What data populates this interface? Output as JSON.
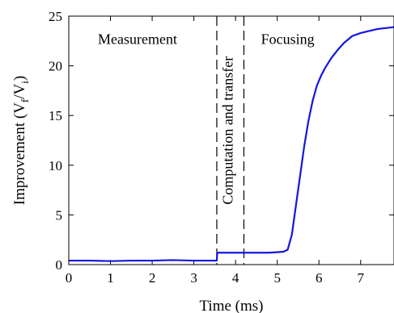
{
  "chart_data": {
    "type": "line",
    "title": "",
    "xlabel": "Time (ms)",
    "ylabel_parts": {
      "main": "Improvement (V",
      "sub1": "f",
      "mid": "/V",
      "sub2": "i",
      "end": ")"
    },
    "xlim": [
      0,
      7.8
    ],
    "ylim": [
      0,
      25
    ],
    "x_ticks": [
      0,
      1,
      2,
      3,
      4,
      5,
      6,
      7
    ],
    "y_ticks": [
      0,
      5,
      10,
      15,
      20,
      25
    ],
    "x_tick_labels": [
      "0",
      "1",
      "2",
      "3",
      "4",
      "5",
      "6",
      "7"
    ],
    "y_tick_labels": [
      "0",
      "5",
      "10",
      "15",
      "20",
      "25"
    ],
    "grid": false,
    "legend": "none",
    "line_color": "#1515e0",
    "phase_boundaries": [
      3.55,
      4.2
    ],
    "annotations": [
      {
        "text": "Measurement",
        "x": 1.65,
        "y": 22.2,
        "rotate": 0
      },
      {
        "text": "Computation and transfer",
        "x": 3.93,
        "y": 13.5,
        "rotate": -90
      },
      {
        "text": "Focusing",
        "x": 5.25,
        "y": 22.2,
        "rotate": 0
      }
    ],
    "series": [
      {
        "x": [
          0,
          0.5,
          1,
          1.5,
          2,
          2.5,
          3,
          3.5,
          3.55,
          3.56,
          3.8,
          4.0,
          4.2,
          4.4,
          4.6,
          4.8,
          5.0,
          5.15,
          5.25,
          5.35,
          5.45,
          5.55,
          5.65,
          5.75,
          5.85,
          5.95,
          6.05,
          6.15,
          6.3,
          6.45,
          6.6,
          6.8,
          7.0,
          7.2,
          7.4,
          7.6,
          7.8
        ],
        "y": [
          0.4,
          0.4,
          0.35,
          0.4,
          0.4,
          0.45,
          0.4,
          0.4,
          0.4,
          1.2,
          1.2,
          1.2,
          1.2,
          1.2,
          1.2,
          1.2,
          1.25,
          1.3,
          1.5,
          3,
          6,
          9,
          12,
          14.5,
          16.5,
          18,
          19,
          19.8,
          20.8,
          21.6,
          22.3,
          23,
          23.3,
          23.5,
          23.7,
          23.8,
          23.9
        ]
      }
    ]
  }
}
